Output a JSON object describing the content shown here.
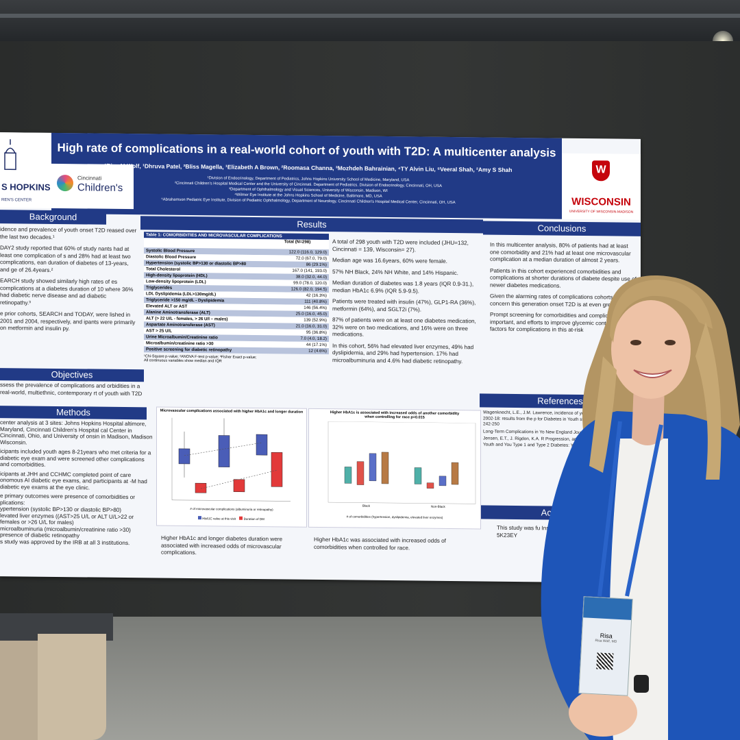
{
  "poster": {
    "title": "High rate of complications in a real-world cohort of youth with T2D: A multicenter analysis",
    "authors": "¹Risa M Wolf, ¹Dhruva Patel, ²Bliss Magella, ¹Elizabeth A Brown, ²Roomasa Channa, ³Mozhdeh Bahrainian, ⁴TY Alvin Liu, ⁵Veeral Shah, ²Amy S Shah",
    "affiliations": [
      "¹Division of Endocrinology, Department of Pediatrics, Johns Hopkins University School of Medicine, Maryland, USA",
      "²Cincinnati Children's Hospital Medical Center and the University of Cincinnati. Department of Pediatrics. Division of Endocrinology, Cincinnati, OH, USA",
      "³Department of Ophthalmology and Visual Sciences, University of Wisconsin, Madison, WI",
      "⁴Wilmer Eye Institute at the Johns Hopkins School of Medicine, Baltimore, MD, USA",
      "⁵Abrahamson Pediatric Eye Institute, Division of Pediatric Ophthalmology, Department of Neurology, Cincinnati Children's Hospital Medical Center, Cincinnati, OH, USA"
    ],
    "logos": {
      "jh_text": "S HOPKINS",
      "jh_sub": "REN'S CENTER",
      "cin_top": "Cincinnati",
      "cin_main": "Children's",
      "wi_main": "WISCONSIN",
      "wi_sub": "UNIVERSITY OF WISCONSIN-MADISON",
      "wi_crest": "W"
    },
    "sections": {
      "background": "Background",
      "results": "Results",
      "conclusions": "Conclusions",
      "objectives": "Objectives",
      "methods": "Methods",
      "references": "References",
      "acknowledgments": "Acknowle"
    },
    "background_text": [
      "idence and prevalence of youth onset T2D reased over the last two decades.¹",
      "DAY2 study reported that 60% of study nants had at least one complication of s and 28% had at least two complications, ean duration of diabetes of 13-years, and ge of 26.4years.²",
      "EARCH study showed similarly high rates of es complications at a diabetes duration of 10 where 36% had diabetic nerve disease and ad diabetic retinopathy.³",
      "e prior cohorts, SEARCH and TODAY, were lished in 2001 and 2004, respectively, and ipants were primarily on metformin and insulin py."
    ],
    "objectives_text": "ssess the prevalence of complications and orbidities in a real-world, multiethnic, contemporary rt of youth with T2D",
    "methods_text": [
      "center analysis at 3 sites: Johns Hopkins Hospital altimore, Maryland, Cincinnati Children's Hospital cal Center in Cincinnati, Ohio, and University of onsin in Madison, Madison Wisconsin.",
      "icipants included youth ages 8-21years who met criteria for a diabetic eye exam and were screened other complications and comorbidities.",
      "icipants at JHH and CCHMC completed point of care onomous AI diabetic eye exams, and participants at -M had diabetic eye exams at the eye clinic.",
      "e primary outcomes were presence of comorbidities or plications:",
      "ypertension (systolic BP>130 or diastolic BP>80)",
      "levated liver enzymes ((AST>25 U/L or ALT U/L>22 or females or >26 U/L for males)",
      "microalbuminuria (microalbumin/creatinine ratio >30)",
      "presence of diabetic retinopathy",
      "s study was approved by the IRB at all 3 institutions."
    ],
    "table": {
      "caption": "Table 1: COMORBIDITIES AND MICROVASCULAR COMPLICATIONS",
      "col_header": "Total (N=298)",
      "rows": [
        {
          "name": "Systolic Blood Pressure",
          "value": "122.0 (116.0, 129.0)"
        },
        {
          "name": "Diastolic Blood Pressure",
          "value": "72.0 (67.0, 79.0)"
        },
        {
          "name": "Hypertension (systolic BP>130 or diastolic BP>80",
          "value": "86 (29.1%)"
        },
        {
          "name": "Total Cholesterol",
          "value": "167.0 (141, 193.0)"
        },
        {
          "name": "High-density lipoprotein (HDL)",
          "value": "38.0 (32.0, 44.0)"
        },
        {
          "name": "Low-density lipoprotein (LDL)",
          "value": "99.0 (78.0, 120.0)"
        },
        {
          "name": "Triglycerides",
          "value": "126.0 (82.0, 194.5)"
        },
        {
          "name": "LDL Dyslipidemia (LDL>130mg/dL)",
          "value": "42 (16.3%)"
        },
        {
          "name": "Triglyceride >150 mg/dL - Dyslipidemia",
          "value": "111 (40.8%)"
        },
        {
          "name": "Elevated ALT or AST",
          "value": "146 (56.4%)"
        },
        {
          "name": "Alanine Aminotransferase (ALT)",
          "value": "25.0 (16.0, 45.0)"
        },
        {
          "name": "ALT (> 22 U/L - females, > 26 U/l – males)",
          "value": "139 (52.9%)"
        },
        {
          "name": "Aspartate Aminotransferase (AST)",
          "value": "21.0 (16.0, 31.0)"
        },
        {
          "name": "AST > 25 U/L",
          "value": "95 (36.8%)"
        },
        {
          "name": "Urine Microalbumin/Creatinine ratio",
          "value": "7.0 (4.0, 18.2)"
        },
        {
          "name": "Microalbumin/creatinine ratio >30",
          "value": "44 (17.1%)"
        },
        {
          "name": "Positive screening for diabetic retinopathy",
          "value": "12 (4.6%)"
        }
      ],
      "footnote1": "¹Chi-Square p-value; ²ANOVA F-test p-value; ³Fisher Exact p-value;",
      "footnote2": "All continuous variables show median and IQR"
    },
    "results_text": [
      "A total of 298 youth with T2D were included (JHU=132, Cincinnati = 139, Wisconsin= 27).",
      "Median age was 16.6years, 60% were female.",
      "57% NH Black, 24% NH White, and 14% Hispanic.",
      "Median duration of diabetes was 1.8 years (IQR 0.9-31.), median HbA1c 6.9% (IQR 5.9-9.5).",
      "Patients were treated with insulin (47%), GLP1-RA (36%), metformin (64%), and SGLT2i (7%).",
      "87% of patients were on at least one diabetes medication, 32% were on two medications, and 16% were on three medications.",
      "In this cohort, 56% had elevated liver enzymes, 49% had dyslipidemia, and 29% had hypertension. 17% had microalbuminuria and 4.6% had diabetic retinopathy."
    ],
    "chart1": {
      "title": "Microvascular complications associated with higher HbA1c and longer duration",
      "xlabel": "# of microvascular complications (albuminuria or retinopathy)",
      "legend": [
        "HbA1C value at this visit",
        "Duration of DM"
      ],
      "caption": "Higher  HbA1c and longer diabetes duration were associated with increased odds of microvascular complications."
    },
    "chart2": {
      "title": "Higher HbA1c is associated with increased odds of another comorbidity when controlling for race p=0.015",
      "groups": [
        "Black",
        "Non-Black"
      ],
      "legend_title": "# of comorbidities (hypertension, dyslipidemia, elevated liver enzymes)",
      "caption": "Higher  HbA1c was associated with increased odds of comorbidities when controlled for race."
    },
    "conclusions_text": [
      "In this multicenter analysis, 80% of patients had at least one comorbidity and 21% had at least one microvascular complication at a median duration of almost 2 years.",
      "Patients in this cohort experienced comorbidities and complications at shorter durations of diabete despite use of newer diabetes medications.",
      "Given the alarming rates of complications cohorts, there is concern this generation onset T2D is at even greater risk.",
      "Prompt screening for comorbidities and complications is important, and efforts to improve glycemic control and mitig factors for complications in this at-risk"
    ],
    "references_text": [
      "Wagenknecht, L.E., J.M. Lawrence, incidence of youth-onset type 1 an USA, 2002-18: results from the p for Diabetes in Youth study. Lan 2023. 11(4): p. 242-250",
      "Long-Term Complications in Yo New England Journal of Medic",
      "Jensen, E.T., J. Rigdon, K.A. R Progression, and Modifiable R Retinopathy in Youth and You Type 1 and Type 2 Diabetes: Youth Study. Diabetes Care,"
    ],
    "ack_text": "This study was fu Institute R01E 5K23EY"
  },
  "badge": {
    "name": "Risa",
    "subtitle": "Risa Wolf, MD"
  }
}
